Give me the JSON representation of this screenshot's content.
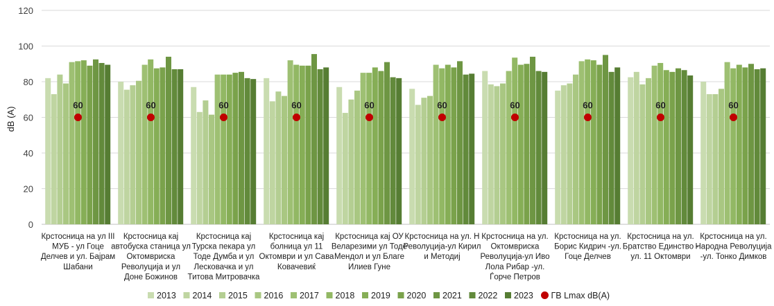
{
  "chart_data": {
    "type": "bar",
    "ylabel": "dB (A)",
    "ylim": [
      0,
      120
    ],
    "yticks": [
      0,
      20,
      40,
      60,
      80,
      100,
      120
    ],
    "grid": true,
    "legend_position": "bottom",
    "categories": [
      [
        "Крстосница на ул III",
        "МУБ - ул Гоце",
        "Делчев и ул. Бајрам",
        "Шабани"
      ],
      [
        "Крстосница кај",
        "автобуска станица ул",
        "Октомвриска",
        "Револуција и ул",
        "Доне Божинов"
      ],
      [
        "Крстосница кај",
        "Турска пекара ул",
        "Тоде Думба и ул",
        "Лесковачка и ул",
        "Титова Митровачка"
      ],
      [
        "Крстосница кај",
        "болница ул 11",
        "Октомври и ул Сава",
        "Ковачевиќ"
      ],
      [
        "Крстосница кај ОУ",
        "Веларезими ул Тоде",
        "Мендол и ул Благе",
        "Илиев Гуне"
      ],
      [
        "Крстосница на ул. Н",
        "Револуција-ул Кирил",
        "и Методиј"
      ],
      [
        "Крстосница на ул.",
        "Октомвриска",
        "Револуција-ул Иво",
        "Лола Рибар -ул.",
        "Ѓорче Петров"
      ],
      [
        "Крстосница на ул.",
        "Борис Кидрич -ул.",
        "Гоце Делчев"
      ],
      [
        "Крстосница на ул.",
        "Братство Единство -",
        "ул. 11 Октомври"
      ],
      [
        "Крстосница на ул.",
        "Народна Револуција",
        "-ул. Тонко Димков"
      ]
    ],
    "series": [
      {
        "name": "2013",
        "color": "#c9dcb0",
        "values": [
          82,
          80,
          77,
          82,
          77,
          76,
          86,
          75,
          82.5,
          80
        ]
      },
      {
        "name": "2014",
        "color": "#bfd5a1",
        "values": [
          73,
          75.5,
          63,
          69,
          62.5,
          67,
          78.5,
          78,
          85.5,
          73
        ]
      },
      {
        "name": "2015",
        "color": "#b4ce92",
        "values": [
          84,
          78,
          69.5,
          74.5,
          70,
          71,
          77.5,
          79,
          78.5,
          73
        ]
      },
      {
        "name": "2016",
        "color": "#a9c782",
        "values": [
          79,
          80.5,
          61.5,
          72,
          75,
          72,
          79,
          84,
          82,
          76
        ]
      },
      {
        "name": "2017",
        "color": "#9ec073",
        "values": [
          91,
          89.5,
          84,
          92,
          85,
          89.5,
          86,
          91.5,
          89,
          91
        ]
      },
      {
        "name": "2018",
        "color": "#92b864",
        "values": [
          91.5,
          92.5,
          84,
          89.5,
          85,
          87.5,
          93.5,
          92.5,
          90.5,
          87.5
        ]
      },
      {
        "name": "2019",
        "color": "#86ae56",
        "values": [
          92,
          87.5,
          84,
          89,
          88,
          89.5,
          89.5,
          92,
          86.5,
          89.5
        ]
      },
      {
        "name": "2020",
        "color": "#7aa24b",
        "values": [
          89,
          88,
          85,
          89,
          86,
          88,
          90,
          89.5,
          85.5,
          88
        ]
      },
      {
        "name": "2021",
        "color": "#6e9643",
        "values": [
          92.5,
          94,
          85.5,
          95.5,
          91,
          91.5,
          94,
          95,
          87.5,
          90
        ]
      },
      {
        "name": "2022",
        "color": "#628a3b",
        "values": [
          90.5,
          87,
          82,
          87,
          82.5,
          84,
          86,
          85.5,
          86.5,
          87
        ]
      },
      {
        "name": "2023",
        "color": "#567d33",
        "values": [
          89.5,
          87,
          81.5,
          88,
          82,
          84.5,
          85.5,
          88,
          83.5,
          87.5
        ]
      }
    ],
    "reference": {
      "name": "ГВ Lmax dB(A)",
      "color": "#c00000",
      "values": [
        60,
        60,
        60,
        60,
        60,
        60,
        60,
        60,
        60,
        60
      ]
    }
  }
}
